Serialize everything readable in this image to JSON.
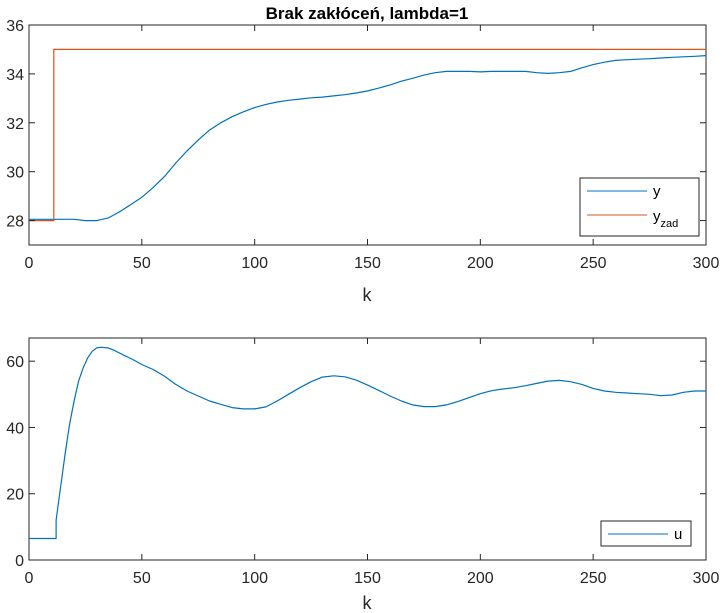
{
  "chart_data": [
    {
      "type": "line",
      "title": "Brak zakłóceń, lambda=1",
      "xlabel": "k",
      "ylabel": "",
      "xlim": [
        0,
        300
      ],
      "ylim": [
        27,
        36
      ],
      "xticks": [
        0,
        50,
        100,
        150,
        200,
        250,
        300
      ],
      "yticks": [
        28,
        30,
        32,
        34,
        36
      ],
      "xtick_labels": [
        "0",
        "50",
        "100",
        "150",
        "200",
        "250",
        "300"
      ],
      "ytick_labels": [
        "28",
        "30",
        "32",
        "34",
        "36"
      ],
      "grid": false,
      "legend_position": "bottom-right",
      "series": [
        {
          "name": "y",
          "name_main": "y",
          "name_sub": "",
          "color": "#0072BD",
          "x": [
            0,
            10,
            20,
            25,
            30,
            35,
            40,
            45,
            50,
            55,
            60,
            65,
            70,
            75,
            80,
            85,
            90,
            95,
            100,
            105,
            110,
            115,
            120,
            125,
            130,
            135,
            140,
            145,
            150,
            155,
            160,
            165,
            170,
            175,
            180,
            185,
            190,
            195,
            200,
            205,
            210,
            215,
            220,
            225,
            230,
            235,
            240,
            245,
            250,
            255,
            260,
            265,
            270,
            275,
            280,
            285,
            290,
            295,
            300
          ],
          "values": [
            28.05,
            28.05,
            28.05,
            28.0,
            28.0,
            28.1,
            28.35,
            28.65,
            28.95,
            29.35,
            29.8,
            30.35,
            30.85,
            31.3,
            31.7,
            32.0,
            32.25,
            32.45,
            32.62,
            32.75,
            32.85,
            32.92,
            32.97,
            33.02,
            33.05,
            33.1,
            33.15,
            33.22,
            33.3,
            33.42,
            33.55,
            33.7,
            33.82,
            33.95,
            34.05,
            34.1,
            34.1,
            34.1,
            34.08,
            34.1,
            34.1,
            34.1,
            34.1,
            34.05,
            34.02,
            34.05,
            34.1,
            34.25,
            34.38,
            34.48,
            34.55,
            34.58,
            34.6,
            34.62,
            34.65,
            34.68,
            34.7,
            34.72,
            34.75
          ]
        },
        {
          "name": "y_zad",
          "name_main": "y",
          "name_sub": "zad",
          "color": "#D95319",
          "x": [
            0,
            11,
            11,
            300
          ],
          "values": [
            28,
            28,
            35,
            35
          ]
        }
      ]
    },
    {
      "type": "line",
      "title": "",
      "xlabel": "k",
      "ylabel": "",
      "xlim": [
        0,
        300
      ],
      "ylim": [
        0,
        67
      ],
      "xticks": [
        0,
        50,
        100,
        150,
        200,
        250,
        300
      ],
      "yticks": [
        0,
        20,
        40,
        60
      ],
      "xtick_labels": [
        "0",
        "50",
        "100",
        "150",
        "200",
        "250",
        "300"
      ],
      "ytick_labels": [
        "0",
        "20",
        "40",
        "60"
      ],
      "grid": false,
      "legend_position": "bottom-right",
      "series": [
        {
          "name": "u",
          "name_main": "u",
          "name_sub": "",
          "color": "#0072BD",
          "x": [
            0,
            12,
            12,
            14,
            16,
            18,
            20,
            22,
            24,
            26,
            28,
            30,
            32,
            35,
            38,
            42,
            46,
            50,
            55,
            60,
            65,
            70,
            75,
            80,
            85,
            90,
            95,
            100,
            105,
            110,
            115,
            120,
            125,
            130,
            135,
            140,
            145,
            150,
            155,
            160,
            165,
            170,
            175,
            180,
            185,
            190,
            195,
            200,
            205,
            210,
            215,
            220,
            225,
            230,
            235,
            240,
            245,
            250,
            255,
            260,
            265,
            270,
            275,
            280,
            285,
            290,
            295,
            300
          ],
          "values": [
            6.5,
            6.5,
            12,
            22,
            32,
            41,
            48,
            54,
            58,
            61,
            63,
            64,
            64.2,
            64,
            63.2,
            61.8,
            60.5,
            59,
            57.5,
            55.5,
            53,
            51,
            49.5,
            48,
            47,
            46,
            45.6,
            45.6,
            46.2,
            48,
            50,
            52,
            53.8,
            55.2,
            55.6,
            55.3,
            54.3,
            52.8,
            51.2,
            49.5,
            48,
            46.8,
            46.3,
            46.3,
            46.8,
            47.8,
            49,
            50.2,
            51.1,
            51.6,
            52,
            52.6,
            53.3,
            54,
            54.2,
            53.8,
            53,
            51.8,
            51,
            50.6,
            50.4,
            50.2,
            50,
            49.6,
            49.8,
            50.6,
            51,
            51
          ]
        }
      ]
    }
  ]
}
